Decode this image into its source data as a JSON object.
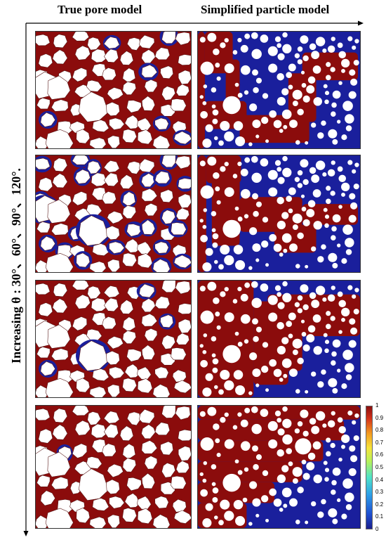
{
  "titles": {
    "left": "True pore model",
    "right": "Simplified particle model"
  },
  "row_label": "Increasing θ : 30°、60°、90°、120°.",
  "colors": {
    "wetting": "#8b0c0c",
    "nonwetting": "#1a1f9c",
    "solid": "#ffffff"
  },
  "colorbar": {
    "ticks": [
      "1",
      "0.9",
      "0.8",
      "0.7",
      "0.6",
      "0.5",
      "0.4",
      "0.3",
      "0.2",
      "0.1",
      "0"
    ]
  }
}
